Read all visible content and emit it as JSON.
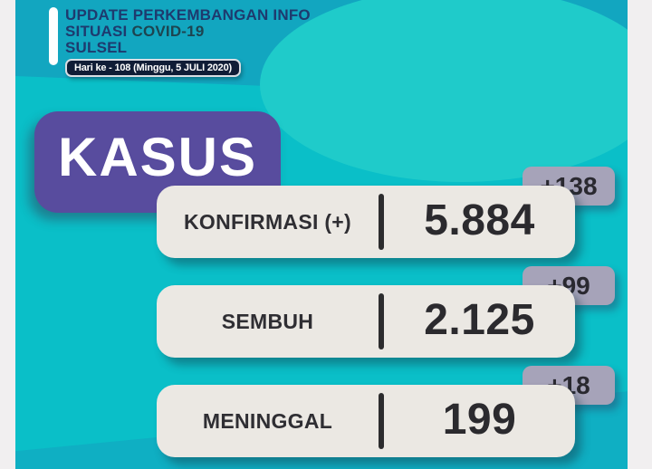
{
  "header": {
    "line1": "UPDATE PERKEMBANGAN INFO",
    "line2_prefix": "SITUASI",
    "line2_highlight": "COVID-19",
    "line3": "SULSEL",
    "day_badge": "Hari ke - 108 (Minggu, 5 JULI 2020)"
  },
  "section_title": "KASUS",
  "stats": [
    {
      "label": "KONFIRMASI (+)",
      "value": "5.884",
      "delta": "+138"
    },
    {
      "label": "SEMBUH",
      "value": "2.125",
      "delta": "+99"
    },
    {
      "label": "MENINGGAL",
      "value": "199",
      "delta": "+18"
    }
  ],
  "chart_data": {
    "type": "table",
    "title": "KASUS",
    "subtitle": "UPDATE PERKEMBANGAN INFO SITUASI COVID-19 SULSEL — Hari ke - 108 (Minggu, 5 JULI 2020)",
    "categories": [
      "KONFIRMASI (+)",
      "SEMBUH",
      "MENINGGAL"
    ],
    "values": [
      5884,
      2125,
      199
    ],
    "deltas": [
      138,
      99,
      18
    ],
    "value_labels": [
      "5.884",
      "2.125",
      "199"
    ],
    "delta_labels": [
      "+138",
      "+99",
      "+18"
    ]
  },
  "colors": {
    "background_teal": "#0abfc8",
    "top_band_teal": "#12a6c0",
    "light_blob_teal": "#1fcbca",
    "purple_box": "#584c9e",
    "card_background": "#ebe8e3",
    "delta_badge": "#a6a3b9",
    "navy_text": "#1e3a6e",
    "covid_text": "#1d4450",
    "day_badge_background": "#101d36",
    "dark_text": "#2b2a2e"
  }
}
